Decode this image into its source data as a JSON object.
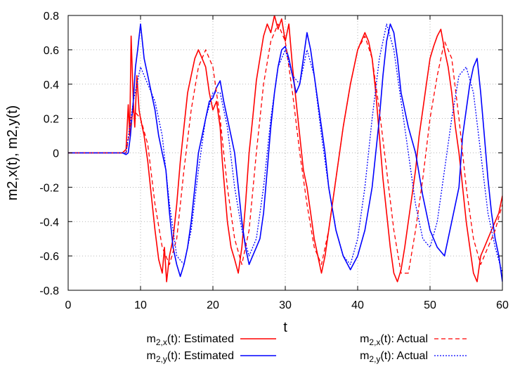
{
  "chart_data": {
    "type": "line",
    "title": "",
    "xlabel": "t",
    "ylabel": "m2,x(t), m2,y(t)",
    "xlim": [
      0,
      60
    ],
    "ylim": [
      -0.8,
      0.8
    ],
    "xticks": [
      0,
      10,
      20,
      30,
      40,
      50,
      60
    ],
    "xtick_labels": [
      "0",
      "10",
      "20",
      "30",
      "40",
      "50",
      "60"
    ],
    "yticks": [
      -0.8,
      -0.6,
      -0.4,
      -0.2,
      0,
      0.2,
      0.4,
      0.6,
      0.8
    ],
    "ytick_labels": [
      "-0.8",
      "-0.6",
      "-0.4",
      "-0.2",
      "0",
      "0.2",
      "0.4",
      "0.6",
      "0.8"
    ],
    "grid": true,
    "legend_position": "bottom",
    "legend_entries": [
      {
        "prefix": "m",
        "sub": "2,x",
        "suffix": "(t): Estimated"
      },
      {
        "prefix": "m",
        "sub": "2,y",
        "suffix": "(t): Estimated"
      },
      {
        "prefix": "m",
        "sub": "2,x",
        "suffix": "(t): Actual"
      },
      {
        "prefix": "m",
        "sub": "2,y",
        "suffix": "(t): Actual"
      }
    ],
    "series": [
      {
        "key": "mx_est",
        "color": "#ff0000",
        "style": "solid",
        "x": [
          0,
          7.5,
          8.0,
          8.3,
          8.5,
          8.7,
          9.0,
          9.2,
          9.5,
          9.8,
          10.0,
          10.5,
          11.0,
          11.5,
          12.0,
          12.5,
          13.0,
          13.3,
          13.6,
          14.0,
          14.5,
          15.0,
          15.5,
          16.0,
          16.5,
          17.0,
          17.5,
          18.0,
          18.5,
          19.0,
          19.5,
          20.0,
          20.5,
          21.0,
          21.3,
          21.6,
          22.0,
          22.5,
          23.0,
          23.5,
          24.0,
          24.5,
          25.0,
          25.5,
          26.0,
          26.5,
          27.0,
          27.5,
          28.0,
          28.5,
          29.0,
          29.5,
          30.0,
          30.5,
          31.0,
          31.5,
          32.0,
          32.5,
          33.0,
          33.5,
          34.0,
          34.5,
          35.0,
          35.5,
          36.0,
          37.0,
          38.0,
          39.0,
          40.0,
          41.0,
          41.5,
          42.0,
          42.5,
          43.0,
          43.5,
          44.0,
          44.5,
          45.0,
          45.5,
          46.0,
          46.5,
          47.0,
          47.5,
          48.0,
          48.5,
          49.0,
          49.5,
          50.0,
          50.5,
          51.0,
          51.5,
          52.0,
          52.5,
          53.0,
          53.5,
          54.0,
          54.5,
          55.0,
          55.5,
          56.0,
          56.5,
          57.0,
          57.5,
          58.0,
          58.5,
          59.0,
          59.5,
          60.0
        ],
        "y": [
          0,
          0.0,
          0.02,
          0.28,
          0.1,
          0.68,
          0.3,
          0.15,
          0.45,
          0.25,
          0.2,
          0.1,
          -0.05,
          -0.25,
          -0.45,
          -0.62,
          -0.7,
          -0.55,
          -0.75,
          -0.6,
          -0.5,
          -0.3,
          -0.05,
          0.15,
          0.35,
          0.45,
          0.55,
          0.6,
          0.55,
          0.5,
          0.35,
          0.25,
          0.3,
          0.15,
          -0.05,
          -0.2,
          -0.4,
          -0.55,
          -0.62,
          -0.7,
          -0.55,
          -0.3,
          0.0,
          0.2,
          0.42,
          0.55,
          0.68,
          0.75,
          0.7,
          0.8,
          0.72,
          0.78,
          0.65,
          0.75,
          0.5,
          0.3,
          0.1,
          -0.1,
          -0.2,
          -0.35,
          -0.5,
          -0.6,
          -0.7,
          -0.6,
          -0.45,
          -0.15,
          0.15,
          0.4,
          0.6,
          0.7,
          0.65,
          0.55,
          0.35,
          0.1,
          -0.15,
          -0.35,
          -0.55,
          -0.7,
          -0.75,
          -0.68,
          -0.55,
          -0.4,
          -0.25,
          -0.1,
          0.1,
          0.25,
          0.4,
          0.55,
          0.62,
          0.68,
          0.72,
          0.6,
          0.5,
          0.35,
          0.15,
          0.0,
          -0.2,
          -0.4,
          -0.55,
          -0.7,
          -0.75,
          -0.6,
          -0.55,
          -0.5,
          -0.45,
          -0.4,
          -0.35,
          -0.25
        ]
      },
      {
        "key": "my_est",
        "color": "#0000ff",
        "style": "solid",
        "x": [
          0,
          7.5,
          8.0,
          8.3,
          8.6,
          9.0,
          9.3,
          9.6,
          10.0,
          10.5,
          11.0,
          11.5,
          12.0,
          12.5,
          13.0,
          13.5,
          14.0,
          14.5,
          15.0,
          15.5,
          16.0,
          16.5,
          17.0,
          17.5,
          18.0,
          18.5,
          19.0,
          19.5,
          20.0,
          20.5,
          21.0,
          21.5,
          22.0,
          22.5,
          23.0,
          23.5,
          24.0,
          24.5,
          25.0,
          25.5,
          26.0,
          26.5,
          27.0,
          27.5,
          28.0,
          28.5,
          29.0,
          29.5,
          30.0,
          30.5,
          31.0,
          31.5,
          32.0,
          32.5,
          33.0,
          33.5,
          34.0,
          34.5,
          35.0,
          35.5,
          36.0,
          37.0,
          38.0,
          39.0,
          40.0,
          41.0,
          42.0,
          43.0,
          43.5,
          44.0,
          44.5,
          45.0,
          45.5,
          46.0,
          47.0,
          48.0,
          49.0,
          50.0,
          51.0,
          52.0,
          53.0,
          54.0,
          54.5,
          55.0,
          55.5,
          56.0,
          56.5,
          57.0,
          57.5,
          58.0,
          58.5,
          59.0,
          59.5,
          60.0
        ],
        "y": [
          0,
          0.0,
          -0.01,
          0.0,
          0.1,
          0.3,
          0.5,
          0.6,
          0.75,
          0.55,
          0.45,
          0.35,
          0.25,
          0.1,
          0.0,
          -0.1,
          -0.35,
          -0.55,
          -0.65,
          -0.72,
          -0.65,
          -0.55,
          -0.4,
          -0.2,
          0.0,
          0.1,
          0.2,
          0.3,
          0.32,
          0.38,
          0.42,
          0.3,
          0.2,
          0.1,
          0.0,
          -0.2,
          -0.4,
          -0.55,
          -0.65,
          -0.6,
          -0.55,
          -0.5,
          -0.35,
          -0.1,
          0.15,
          0.35,
          0.5,
          0.6,
          0.62,
          0.55,
          0.45,
          0.35,
          0.4,
          0.55,
          0.7,
          0.6,
          0.45,
          0.3,
          0.15,
          0.0,
          -0.2,
          -0.45,
          -0.6,
          -0.68,
          -0.6,
          -0.45,
          -0.2,
          0.2,
          0.45,
          0.65,
          0.75,
          0.7,
          0.55,
          0.35,
          0.15,
          0.0,
          -0.25,
          -0.45,
          -0.55,
          -0.6,
          -0.4,
          -0.2,
          0.1,
          0.25,
          0.4,
          0.5,
          0.55,
          0.35,
          0.1,
          -0.15,
          -0.35,
          -0.5,
          -0.6,
          -0.75
        ]
      },
      {
        "key": "mx_act",
        "color": "#ff0000",
        "style": "dashed",
        "x": [
          0,
          8.0,
          9.0,
          10.0,
          11.0,
          12.0,
          13.0,
          14.0,
          15.0,
          16.0,
          17.0,
          18.0,
          19.0,
          20.0,
          21.0,
          22.0,
          23.0,
          24.0,
          25.0,
          26.0,
          27.0,
          28.0,
          29.0,
          30.0,
          31.0,
          32.0,
          33.0,
          34.0,
          35.0,
          36.0,
          37.0,
          38.0,
          39.0,
          40.0,
          41.0,
          42.0,
          43.0,
          44.0,
          45.0,
          46.0,
          47.0,
          48.0,
          49.0,
          50.0,
          51.0,
          52.0,
          53.0,
          54.0,
          55.0,
          56.0,
          57.0,
          58.0,
          59.0,
          60.0
        ],
        "y": [
          0,
          0.0,
          0.25,
          0.2,
          0.05,
          -0.3,
          -0.55,
          -0.65,
          -0.5,
          -0.1,
          0.25,
          0.5,
          0.6,
          0.5,
          0.2,
          -0.2,
          -0.5,
          -0.65,
          -0.45,
          0.0,
          0.4,
          0.65,
          0.75,
          0.65,
          0.35,
          0.0,
          -0.3,
          -0.55,
          -0.65,
          -0.45,
          -0.15,
          0.15,
          0.4,
          0.6,
          0.68,
          0.55,
          0.25,
          -0.1,
          -0.45,
          -0.7,
          -0.7,
          -0.45,
          -0.15,
          0.2,
          0.45,
          0.65,
          0.55,
          0.2,
          -0.2,
          -0.5,
          -0.65,
          -0.55,
          -0.45,
          -0.3
        ]
      },
      {
        "key": "my_act",
        "color": "#0000ff",
        "style": "dotted",
        "x": [
          0,
          8.0,
          9.0,
          10.0,
          11.0,
          12.0,
          13.0,
          14.0,
          15.0,
          16.0,
          17.0,
          18.0,
          19.0,
          20.0,
          21.0,
          22.0,
          23.0,
          24.0,
          25.0,
          26.0,
          27.0,
          28.0,
          29.0,
          30.0,
          31.0,
          32.0,
          33.0,
          34.0,
          35.0,
          36.0,
          37.0,
          38.0,
          39.0,
          40.0,
          41.0,
          42.0,
          43.0,
          44.0,
          45.0,
          46.0,
          47.0,
          48.0,
          49.0,
          50.0,
          51.0,
          52.0,
          53.0,
          54.0,
          55.0,
          56.0,
          57.0,
          58.0,
          59.0,
          60.0
        ],
        "y": [
          0,
          0.0,
          0.3,
          0.5,
          0.4,
          0.3,
          0.1,
          -0.3,
          -0.6,
          -0.65,
          -0.45,
          -0.1,
          0.2,
          0.35,
          0.35,
          0.15,
          -0.2,
          -0.45,
          -0.6,
          -0.5,
          -0.2,
          0.2,
          0.5,
          0.6,
          0.45,
          0.4,
          0.6,
          0.45,
          0.1,
          -0.2,
          -0.45,
          -0.6,
          -0.65,
          -0.5,
          -0.2,
          0.2,
          0.55,
          0.75,
          0.6,
          0.3,
          0.0,
          -0.3,
          -0.5,
          -0.55,
          -0.4,
          -0.1,
          0.2,
          0.45,
          0.5,
          0.35,
          0.0,
          -0.35,
          -0.55,
          -0.7
        ]
      }
    ]
  }
}
